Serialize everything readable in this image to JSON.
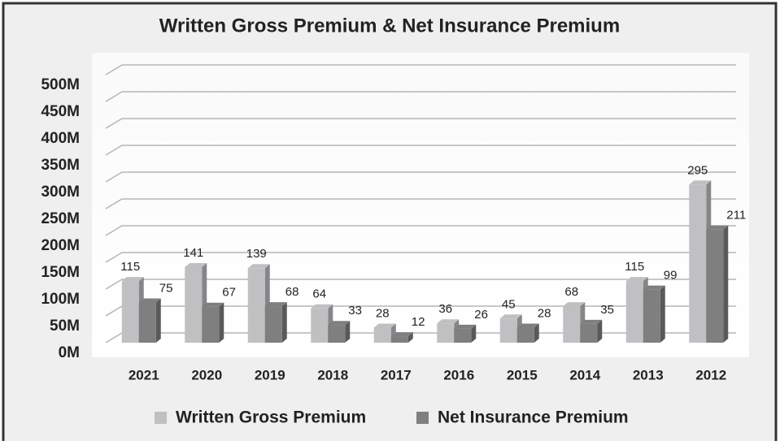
{
  "chart_data": {
    "type": "bar",
    "title": "Written Gross Premium & Net Insurance Premium",
    "categories": [
      "2021",
      "2020",
      "2019",
      "2018",
      "2017",
      "2016",
      "2015",
      "2014",
      "2013",
      "2012"
    ],
    "series": [
      {
        "name": "Written Gross Premium",
        "color": "#c0c0c3",
        "values": [
          115,
          141,
          139,
          64,
          28,
          36,
          45,
          68,
          115,
          295
        ]
      },
      {
        "name": "Net Insurance Premium",
        "color": "#7f7f7f",
        "values": [
          75,
          67,
          68,
          33,
          12,
          26,
          28,
          35,
          99,
          211
        ]
      }
    ],
    "ylim": [
      0,
      500
    ],
    "yticks": [
      {
        "value": 0,
        "label": "0M"
      },
      {
        "value": 50,
        "label": "50M"
      },
      {
        "value": 100,
        "label": "100M"
      },
      {
        "value": 150,
        "label": "150M"
      },
      {
        "value": 200,
        "label": "200M"
      },
      {
        "value": 250,
        "label": "250M"
      },
      {
        "value": 300,
        "label": "300M"
      },
      {
        "value": 350,
        "label": "350M"
      },
      {
        "value": 400,
        "label": "400M"
      },
      {
        "value": 450,
        "label": "450M"
      },
      {
        "value": 500,
        "label": "500M"
      }
    ],
    "grid": true,
    "legend": "bottom"
  }
}
